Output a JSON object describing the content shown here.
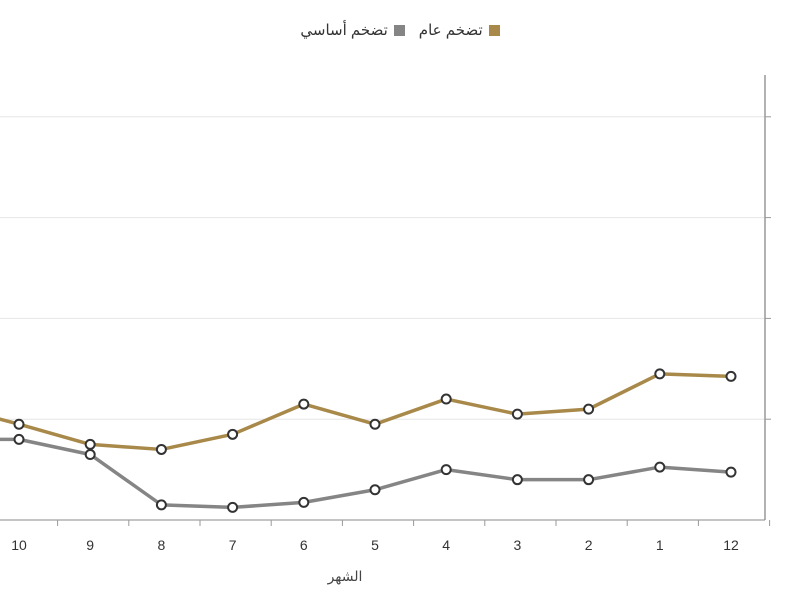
{
  "chart_data": {
    "type": "line",
    "categories": [
      "10",
      "9",
      "8",
      "7",
      "6",
      "5",
      "4",
      "3",
      "2",
      "1",
      "12"
    ],
    "series": [
      {
        "name": "تضخم عام",
        "color": "#a8894a",
        "values": [
          1.9,
          1.5,
          1.4,
          1.7,
          2.3,
          1.9,
          2.4,
          2.1,
          2.2,
          2.9,
          2.85
        ]
      },
      {
        "name": "تضخم أساسي",
        "color": "#858585",
        "values": [
          1.6,
          1.3,
          0.3,
          0.25,
          0.35,
          0.6,
          1.0,
          0.8,
          0.8,
          1.05,
          0.95
        ]
      }
    ],
    "xlabel": "الشهر",
    "ylabel": "",
    "ylim": [
      0,
      8
    ],
    "grid": true,
    "legend": "top-center"
  }
}
